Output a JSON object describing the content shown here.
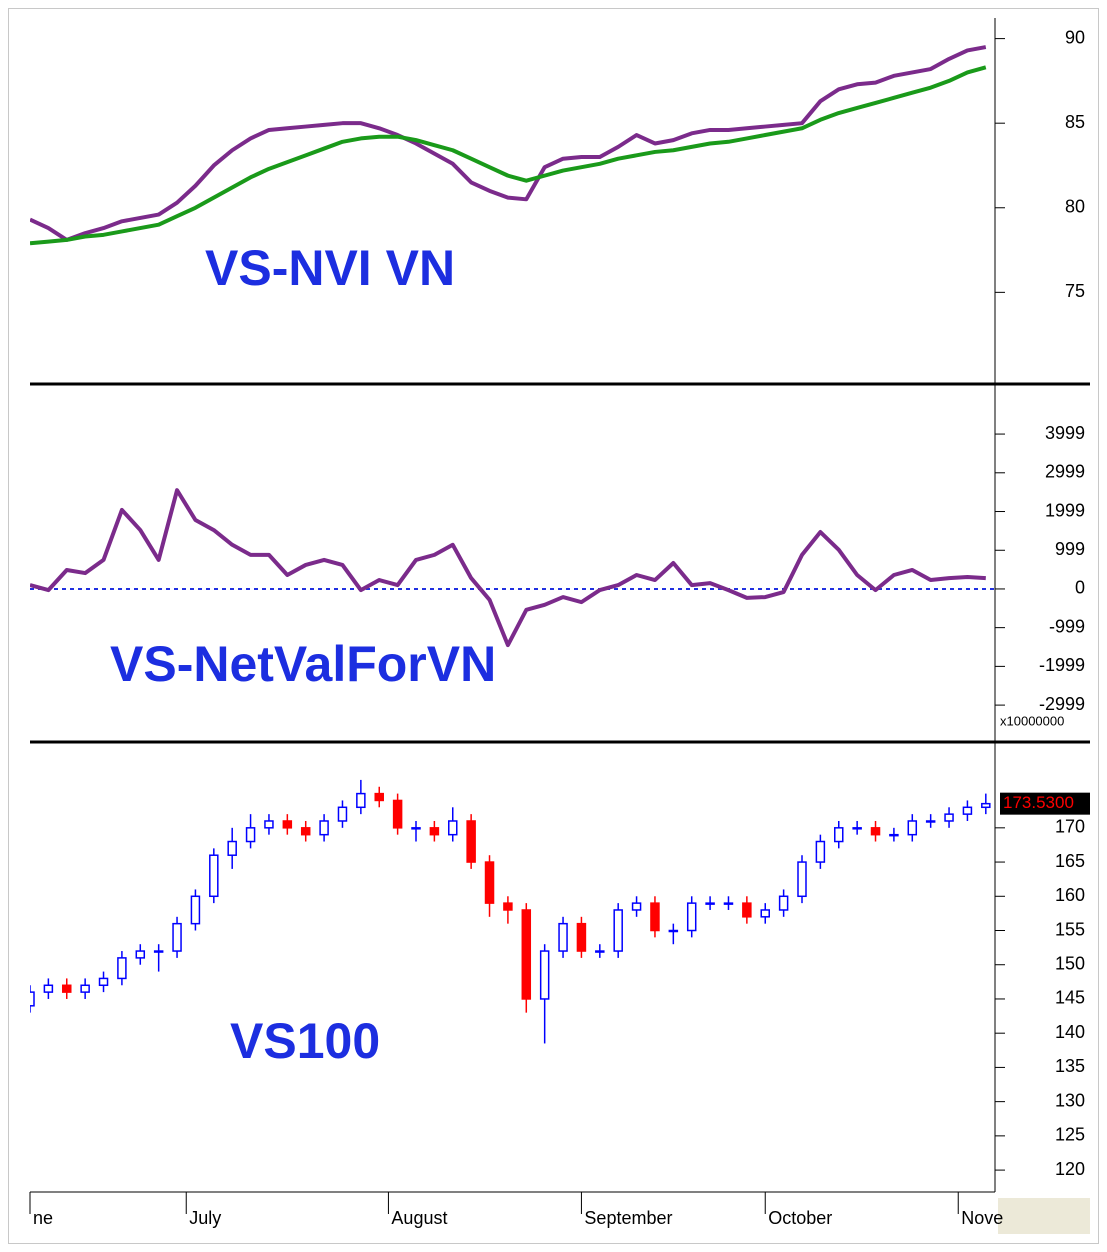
{
  "chart_data": [
    {
      "type": "line",
      "title": "VS-NVI VN",
      "x": [
        0,
        2,
        4,
        6,
        8,
        10,
        12,
        14,
        16,
        18,
        20,
        22,
        24,
        26,
        28,
        30,
        32,
        34,
        36,
        38,
        40,
        42,
        44,
        46,
        48,
        50,
        52,
        54,
        56,
        58,
        60,
        62,
        64,
        66,
        68,
        70,
        72,
        74,
        76,
        78,
        80,
        82,
        84,
        86,
        88,
        90,
        92,
        94,
        96,
        98,
        100,
        102,
        104
      ],
      "xlim": [
        0,
        105
      ],
      "ylim": [
        69.7,
        91.1
      ],
      "yticks": [
        75,
        80,
        85,
        90
      ],
      "series": [
        {
          "color": "#7b2b8b",
          "values": [
            79.3,
            78.8,
            78.1,
            78.5,
            78.8,
            79.2,
            79.4,
            79.6,
            80.3,
            81.3,
            82.5,
            83.4,
            84.1,
            84.6,
            84.7,
            84.8,
            84.9,
            85.0,
            85.0,
            84.7,
            84.3,
            83.8,
            83.2,
            82.6,
            81.5,
            81.0,
            80.6,
            80.5,
            82.4,
            82.9,
            83.0,
            83.0,
            83.6,
            84.3,
            83.8,
            84.0,
            84.4,
            84.6,
            84.6,
            84.7,
            84.8,
            84.9,
            85.0,
            86.3,
            87.0,
            87.3,
            87.4,
            87.8,
            88.0,
            88.2,
            88.8,
            89.3,
            89.5
          ]
        },
        {
          "color": "#1a9a1a",
          "values": [
            77.9,
            78.0,
            78.1,
            78.3,
            78.4,
            78.6,
            78.8,
            79.0,
            79.5,
            80.0,
            80.6,
            81.2,
            81.8,
            82.3,
            82.7,
            83.1,
            83.5,
            83.9,
            84.1,
            84.2,
            84.2,
            84.0,
            83.7,
            83.4,
            82.9,
            82.4,
            81.9,
            81.6,
            81.9,
            82.2,
            82.4,
            82.6,
            82.9,
            83.1,
            83.3,
            83.4,
            83.6,
            83.8,
            83.9,
            84.1,
            84.3,
            84.5,
            84.7,
            85.2,
            85.6,
            85.9,
            86.2,
            86.5,
            86.8,
            87.1,
            87.5,
            88.0,
            88.3
          ]
        }
      ]
    },
    {
      "type": "line",
      "title": "VS-NetValForVN",
      "multiplier": "x10000000",
      "x": [
        0,
        2,
        4,
        6,
        8,
        10,
        12,
        14,
        16,
        18,
        20,
        22,
        24,
        26,
        28,
        30,
        32,
        34,
        36,
        38,
        40,
        42,
        44,
        46,
        48,
        50,
        52,
        54,
        56,
        58,
        60,
        62,
        64,
        66,
        68,
        70,
        72,
        74,
        76,
        78,
        80,
        82,
        84,
        86,
        88,
        90,
        92,
        94,
        96,
        98,
        100,
        102,
        104
      ],
      "xlim": [
        0,
        105
      ],
      "ylim": [
        -3900,
        5240
      ],
      "yticks": [
        -2999,
        -1999,
        -999,
        0,
        999,
        1999,
        2999,
        3999
      ],
      "reference_line": 0,
      "reference_color": "#2030e0",
      "series": [
        {
          "color": "#7b2b8b",
          "values": [
            100,
            -30,
            490,
            410,
            750,
            2040,
            1520,
            750,
            2550,
            1780,
            1520,
            1140,
            880,
            880,
            360,
            620,
            750,
            620,
            -30,
            230,
            100,
            750,
            880,
            1140,
            280,
            -280,
            -1450,
            -540,
            -410,
            -210,
            -340,
            -30,
            100,
            360,
            230,
            670,
            100,
            150,
            -30,
            -230,
            -210,
            -80,
            880,
            1470,
            1010,
            360,
            -30,
            360,
            490,
            230,
            280,
            310,
            280
          ]
        }
      ]
    },
    {
      "type": "candlestick",
      "title": "VS100",
      "x": [
        0,
        2,
        4,
        6,
        8,
        10,
        12,
        14,
        16,
        18,
        20,
        22,
        24,
        26,
        28,
        30,
        32,
        34,
        36,
        38,
        40,
        42,
        44,
        46,
        48,
        50,
        52,
        54,
        56,
        58,
        60,
        62,
        64,
        66,
        68,
        70,
        72,
        74,
        76,
        78,
        80,
        82,
        84,
        86,
        88,
        90,
        92,
        94,
        96,
        98,
        100,
        102,
        104
      ],
      "xlim": [
        0,
        105
      ],
      "ylim": [
        116.8,
        182.1
      ],
      "yticks": [
        120,
        125,
        130,
        135,
        140,
        145,
        150,
        155,
        160,
        165,
        170
      ],
      "xticks": [
        {
          "value": 0,
          "label": "ne"
        },
        {
          "value": 17,
          "label": "July"
        },
        {
          "value": 39,
          "label": "August"
        },
        {
          "value": 60,
          "label": "September"
        },
        {
          "value": 80,
          "label": "October"
        },
        {
          "value": 101,
          "label": "Nove"
        }
      ],
      "up_color": "#0000ff",
      "down_color": "#ff0000",
      "last_label": "173.5300",
      "open": [
        144,
        146,
        147,
        146,
        147,
        148,
        151,
        152,
        152,
        156,
        160,
        166,
        168,
        170,
        171,
        170,
        169,
        171,
        173,
        175,
        174,
        170,
        170,
        169,
        171,
        165,
        159,
        158,
        145,
        152,
        156,
        152,
        152,
        158,
        159,
        155,
        155,
        159,
        159,
        159,
        157,
        158,
        160,
        165,
        168,
        170,
        170,
        169,
        169,
        171,
        171,
        172,
        173
      ],
      "high": [
        147,
        148,
        148,
        148,
        149,
        152,
        153,
        153,
        157,
        161,
        167,
        170,
        172,
        172,
        172,
        171,
        172,
        174,
        177,
        176,
        175,
        171,
        171,
        173,
        172,
        166,
        160,
        159,
        153,
        157,
        157,
        153,
        159,
        160,
        160,
        156,
        160,
        160,
        160,
        160,
        159,
        161,
        166,
        169,
        171,
        171,
        171,
        170,
        172,
        172,
        173,
        174,
        175
      ],
      "low": [
        143,
        145,
        145,
        145,
        146,
        147,
        150,
        149,
        151,
        155,
        159,
        164,
        167,
        169,
        169,
        168,
        168,
        170,
        172,
        173,
        169,
        168,
        168,
        168,
        164,
        157,
        156,
        143,
        138.5,
        151,
        151,
        151,
        151,
        157,
        154,
        153,
        154,
        158,
        158,
        156,
        156,
        157,
        159,
        164,
        167,
        169,
        168,
        168,
        168,
        170,
        170,
        171,
        172
      ],
      "close": [
        146,
        147,
        146,
        147,
        148,
        151,
        152,
        152,
        156,
        160,
        166,
        168,
        170,
        171,
        170,
        169,
        171,
        173,
        175,
        174,
        170,
        170,
        169,
        171,
        165,
        159,
        158,
        145,
        152,
        156,
        152,
        152,
        158,
        159,
        155,
        155,
        159,
        159,
        159,
        157,
        158,
        160,
        165,
        168,
        170,
        170,
        169,
        169,
        171,
        171,
        172,
        173,
        173.53
      ]
    }
  ]
}
